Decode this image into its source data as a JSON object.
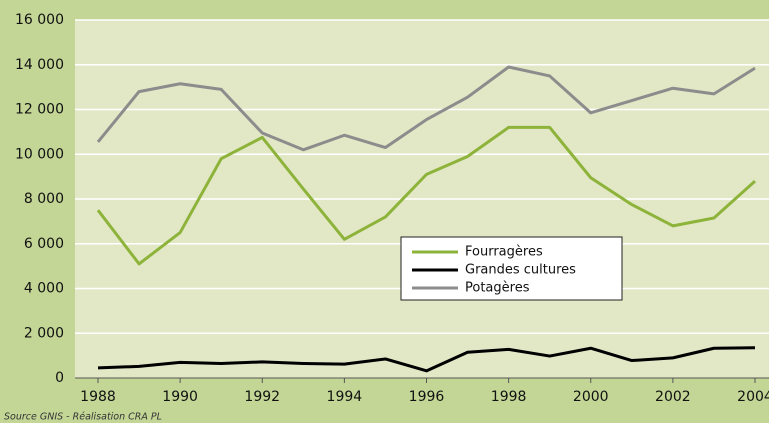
{
  "chart_data": {
    "type": "line",
    "source": "Source GNIS - Réalisation CRA PL",
    "x": [
      1988,
      1989,
      1990,
      1991,
      1992,
      1993,
      1994,
      1995,
      1996,
      1997,
      1998,
      1999,
      2000,
      2001,
      2002,
      2003,
      2004
    ],
    "series": [
      {
        "name": "Fourragères",
        "color": "#8db33a",
        "values": [
          7500,
          5100,
          6500,
          9800,
          10750,
          8450,
          6200,
          7200,
          9100,
          9900,
          11200,
          11200,
          8950,
          7750,
          6800,
          7150,
          8800
        ]
      },
      {
        "name": "Grandes cultures",
        "color": "#000000",
        "values": [
          450,
          520,
          700,
          650,
          720,
          650,
          620,
          850,
          320,
          1150,
          1280,
          980,
          1330,
          780,
          900,
          1330,
          1350
        ]
      },
      {
        "name": "Potagères",
        "color": "#8c8c8c",
        "values": [
          10550,
          12800,
          13150,
          12900,
          10950,
          10200,
          10850,
          10300,
          11550,
          12550,
          13900,
          13500,
          11850,
          12400,
          12950,
          12700,
          13850
        ]
      }
    ],
    "xlim": [
      1988,
      2004
    ],
    "xticks": [
      1988,
      1990,
      1992,
      1994,
      1996,
      1998,
      2000,
      2002,
      2004
    ],
    "ylim": [
      0,
      16000
    ],
    "yticks": [
      0,
      {
        "value": 2000,
        "label": "2 000"
      },
      {
        "value": 4000,
        "label": "4 000"
      },
      {
        "value": 6000,
        "label": "6 000"
      },
      {
        "value": 8000,
        "label": "8 000"
      },
      {
        "value": 10000,
        "label": "10 000"
      },
      {
        "value": 12000,
        "label": "12 000"
      },
      {
        "value": 14000,
        "label": "14 000"
      },
      {
        "value": 16000,
        "label": "16 000"
      }
    ],
    "grid": true
  }
}
